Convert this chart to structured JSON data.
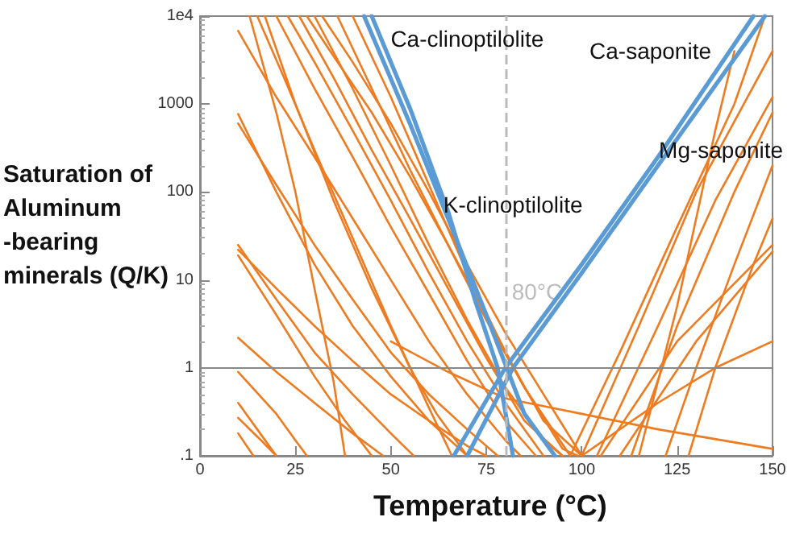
{
  "chart_data": {
    "type": "line",
    "xlabel": "Temperature (°C)",
    "ylabel": "Saturation of Aluminum -bearing minerals (Q/K)",
    "xlim": [
      0,
      150
    ],
    "xticks": [
      0,
      25,
      50,
      75,
      100,
      125,
      150
    ],
    "ylim": [
      0.1,
      10000
    ],
    "yticks": [
      {
        "value": 0.1,
        "label": ".1"
      },
      1,
      10,
      100,
      1000,
      {
        "value": 10000,
        "label": "1e4"
      }
    ],
    "log": "y",
    "grid": false,
    "legend": false,
    "marker": "none",
    "line_style": "solid",
    "ref_lines": [
      {
        "axis": "x",
        "value": 80,
        "label": "80°C",
        "color": "#bbbbbb",
        "line_style": "dashed"
      },
      {
        "axis": "y",
        "value": 1,
        "label": null,
        "color": "#888888",
        "line_style": "solid"
      }
    ],
    "series": [
      {
        "color": "#ee7b1f",
        "x": [
          10,
          20,
          30,
          40,
          50,
          60,
          70,
          80,
          84
        ],
        "values": [
          6800,
          1200,
          250,
          50,
          10,
          2,
          0.5,
          0.15,
          0.1
        ]
      },
      {
        "color": "#ee7b1f",
        "x": [
          10,
          20,
          30,
          40,
          50,
          60,
          70
        ],
        "values": [
          770,
          100,
          15,
          3,
          0.8,
          0.25,
          0.1
        ]
      },
      {
        "color": "#ee7b1f",
        "x": [
          10,
          20,
          30,
          40,
          50,
          60,
          70,
          78
        ],
        "values": [
          600,
          120,
          25,
          6,
          1.5,
          0.5,
          0.2,
          0.1
        ]
      },
      {
        "color": "#ee7b1f",
        "x": [
          10,
          20,
          30,
          40,
          50,
          56
        ],
        "values": [
          25,
          6,
          1.5,
          0.5,
          0.18,
          0.1
        ]
      },
      {
        "color": "#ee7b1f",
        "x": [
          10,
          20,
          30,
          38,
          45
        ],
        "values": [
          19,
          4,
          0.8,
          0.25,
          0.1
        ]
      },
      {
        "color": "#ee7b1f",
        "x": [
          10,
          20,
          30,
          40,
          50,
          60,
          70,
          75
        ],
        "values": [
          22,
          8,
          3,
          1.2,
          0.5,
          0.25,
          0.13,
          0.1
        ]
      },
      {
        "color": "#ee7b1f",
        "x": [
          10,
          20,
          30,
          40,
          48
        ],
        "values": [
          2.2,
          0.9,
          0.4,
          0.18,
          0.1
        ]
      },
      {
        "color": "#ee7b1f",
        "x": [
          10,
          20,
          25,
          28
        ],
        "values": [
          0.9,
          0.3,
          0.15,
          0.1
        ]
      },
      {
        "color": "#ee7b1f",
        "x": [
          10,
          15,
          20
        ],
        "values": [
          0.4,
          0.2,
          0.1
        ]
      },
      {
        "color": "#ee7b1f",
        "x": [
          10,
          16,
          20
        ],
        "values": [
          0.27,
          0.15,
          0.1
        ]
      },
      {
        "color": "#ee7b1f",
        "x": [
          10,
          14
        ],
        "values": [
          0.18,
          0.1
        ]
      },
      {
        "color": "#ee7b1f",
        "x": [
          13,
          20,
          25,
          30,
          35,
          38
        ],
        "values": [
          10000,
          800,
          100,
          8,
          0.7,
          0.1
        ]
      },
      {
        "color": "#ee7b1f",
        "x": [
          20,
          30,
          40,
          50,
          60,
          70,
          80,
          88
        ],
        "values": [
          10000,
          1500,
          250,
          40,
          7,
          1.2,
          0.25,
          0.1
        ]
      },
      {
        "color": "#ee7b1f",
        "x": [
          23,
          30,
          40,
          50,
          60,
          70,
          80,
          90
        ],
        "values": [
          10000,
          3000,
          500,
          80,
          12,
          2,
          0.4,
          0.1
        ]
      },
      {
        "color": "#ee7b1f",
        "x": [
          26,
          35,
          45,
          55,
          65,
          75,
          85,
          95
        ],
        "values": [
          10000,
          2000,
          300,
          50,
          8,
          1.3,
          0.25,
          0.1
        ]
      },
      {
        "color": "#ee7b1f",
        "x": [
          30,
          40,
          50,
          60,
          70,
          80,
          90,
          95
        ],
        "values": [
          10000,
          1500,
          200,
          25,
          3.5,
          0.6,
          0.15,
          0.1
        ]
      },
      {
        "color": "#ee7b1f",
        "x": [
          32,
          40,
          50,
          60,
          70,
          80,
          90,
          100
        ],
        "values": [
          10000,
          3000,
          600,
          100,
          15,
          2.5,
          0.5,
          0.1
        ]
      },
      {
        "color": "#ee7b1f",
        "x": [
          36,
          45,
          55,
          65,
          75,
          85,
          97
        ],
        "values": [
          10000,
          1500,
          180,
          25,
          3.5,
          0.6,
          0.1
        ]
      },
      {
        "color": "#ee7b1f",
        "x": [
          40,
          50,
          60,
          70,
          80,
          90,
          100
        ],
        "values": [
          10000,
          1200,
          120,
          12,
          1.5,
          0.25,
          0.1
        ]
      },
      {
        "color": "#ee7b1f",
        "x": [
          17,
          25,
          35,
          45,
          55,
          62,
          70
        ],
        "values": [
          10000,
          1000,
          80,
          8,
          1,
          0.3,
          0.1
        ]
      },
      {
        "color": "#ee7b1f",
        "x": [
          28,
          35,
          45,
          55,
          65,
          75,
          85,
          95,
          99
        ],
        "values": [
          10000,
          3500,
          800,
          150,
          25,
          4,
          0.6,
          0.12,
          0.1
        ]
      },
      {
        "color": "#ee7b1f",
        "x": [
          15,
          22,
          30,
          40,
          50,
          60,
          66
        ],
        "values": [
          10000,
          2000,
          300,
          30,
          3,
          0.35,
          0.1
        ]
      },
      {
        "color": "#ee7b1f",
        "x": [
          50,
          65,
          80,
          100,
          120,
          150
        ],
        "values": [
          2,
          0.9,
          0.45,
          0.3,
          0.2,
          0.12
        ]
      },
      {
        "color": "#ee7b1f",
        "x": [
          97,
          110,
          125,
          140,
          148
        ],
        "values": [
          0.1,
          1.5,
          40,
          1000,
          10000
        ]
      },
      {
        "color": "#ee7b1f",
        "x": [
          100,
          115,
          130,
          150
        ],
        "values": [
          0.1,
          3,
          100,
          4000
        ]
      },
      {
        "color": "#ee7b1f",
        "x": [
          104,
          120,
          135,
          150
        ],
        "values": [
          0.1,
          3,
          80,
          1200
        ]
      },
      {
        "color": "#ee7b1f",
        "x": [
          113,
          125,
          140,
          150
        ],
        "values": [
          0.1,
          3,
          100,
          800
        ]
      },
      {
        "color": "#ee7b1f",
        "x": [
          122,
          130,
          140,
          150
        ],
        "values": [
          0.1,
          1,
          15,
          200
        ]
      },
      {
        "color": "#ee7b1f",
        "x": [
          128,
          135,
          145,
          150
        ],
        "values": [
          0.1,
          1,
          15,
          50
        ]
      },
      {
        "color": "#ee7b1f",
        "x": [
          105,
          125,
          150
        ],
        "values": [
          0.1,
          2,
          25
        ]
      },
      {
        "color": "#ee7b1f",
        "x": [
          100,
          120,
          135,
          150
        ],
        "values": [
          0.1,
          0.4,
          1,
          2
        ]
      },
      {
        "color": "#ee7b1f",
        "x": [
          110,
          130,
          150
        ],
        "values": [
          0.1,
          2,
          21
        ]
      },
      {
        "color": "#ee7b1f",
        "x": [
          115,
          125,
          135,
          140
        ],
        "values": [
          0.1,
          5,
          500,
          4000
        ]
      },
      {
        "name": "Ca-clinoptilolite",
        "color": "#5b9bd5",
        "x": [
          43,
          55,
          65,
          75,
          80,
          85,
          93
        ],
        "values": [
          10000,
          600,
          50,
          4,
          1.1,
          0.3,
          0.1
        ]
      },
      {
        "name": "K-clinoptilolite",
        "color": "#5b9bd5",
        "x": [
          45,
          55,
          65,
          72,
          78,
          82
        ],
        "values": [
          10000,
          900,
          60,
          6,
          1,
          0.1
        ]
      },
      {
        "name": "Ca-saponite",
        "color": "#5b9bd5",
        "x": [
          66.5,
          80,
          100,
          120,
          145
        ],
        "values": [
          0.1,
          1,
          15,
          250,
          10000
        ]
      },
      {
        "name": "Mg-saponite",
        "color": "#5b9bd5",
        "x": [
          70,
          82,
          100,
          120,
          148
        ],
        "values": [
          0.1,
          1,
          12,
          200,
          10000
        ]
      }
    ]
  }
}
